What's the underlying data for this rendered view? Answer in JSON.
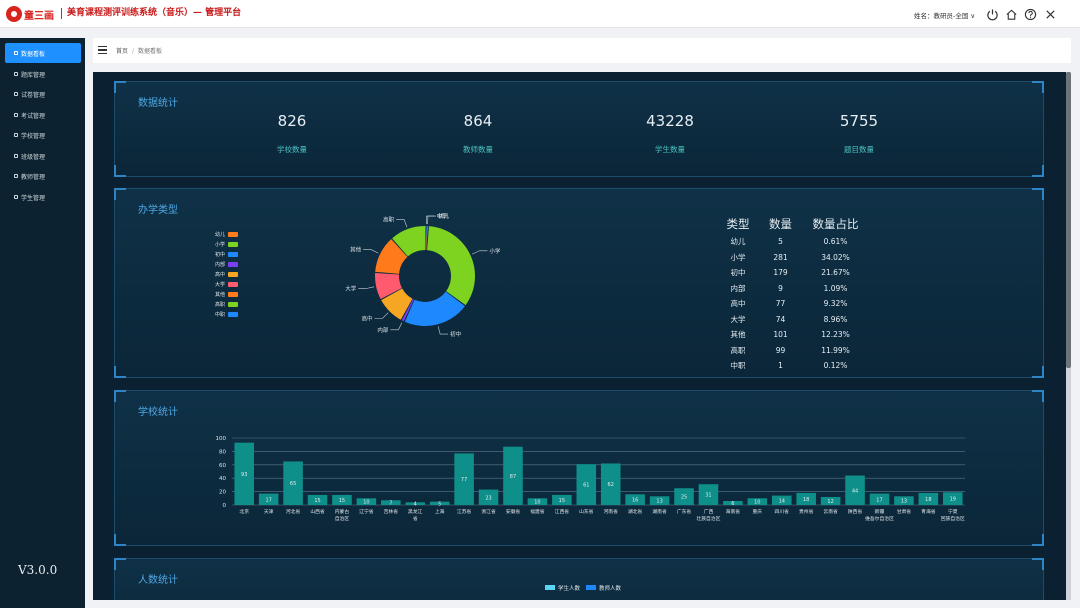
{
  "header": {
    "logo_text": "童三画",
    "title": "美育课程测评训练系统（音乐）— 管理平台",
    "user": "姓名：教研员-全国 ∨"
  },
  "sidebar": {
    "items": [
      {
        "label": "数据看板",
        "active": true
      },
      {
        "label": "题库管理"
      },
      {
        "label": "试卷管理"
      },
      {
        "label": "考试管理"
      },
      {
        "label": "学校管理"
      },
      {
        "label": "班级管理"
      },
      {
        "label": "教师管理"
      },
      {
        "label": "学生管理"
      }
    ],
    "version": "V3.0.0"
  },
  "breadcrumb": {
    "home": "首页",
    "sep": "/",
    "current": "数据看板"
  },
  "summary": {
    "title": "数据统计",
    "stats": [
      {
        "value": "826",
        "label": "学校数量"
      },
      {
        "value": "864",
        "label": "教师数量"
      },
      {
        "value": "43228",
        "label": "学生数量"
      },
      {
        "value": "5755",
        "label": "题目数量"
      }
    ]
  },
  "school_types": {
    "title": "办学类型",
    "legend": [
      {
        "name": "幼儿",
        "color": "#ff7a1a"
      },
      {
        "name": "小学",
        "color": "#7ed321"
      },
      {
        "name": "初中",
        "color": "#1e88ff"
      },
      {
        "name": "内部",
        "color": "#7b3ff2"
      },
      {
        "name": "高中",
        "color": "#f5a623"
      },
      {
        "name": "大学",
        "color": "#ff5a6e"
      },
      {
        "name": "其他",
        "color": "#ff7a1a"
      },
      {
        "name": "高职",
        "color": "#7ed321"
      },
      {
        "name": "中职",
        "color": "#1e88ff"
      }
    ],
    "table": {
      "headers": [
        "类型",
        "数量",
        "数量占比"
      ],
      "rows": [
        [
          "幼儿",
          "5",
          "0.61%"
        ],
        [
          "小学",
          "281",
          "34.02%"
        ],
        [
          "初中",
          "179",
          "21.67%"
        ],
        [
          "内部",
          "9",
          "1.09%"
        ],
        [
          "高中",
          "77",
          "9.32%"
        ],
        [
          "大学",
          "74",
          "8.96%"
        ],
        [
          "其他",
          "101",
          "12.23%"
        ],
        [
          "高职",
          "99",
          "11.99%"
        ],
        [
          "中职",
          "1",
          "0.12%"
        ]
      ]
    }
  },
  "school_stats": {
    "title": "学校统计"
  },
  "people_stats": {
    "title": "人数统计",
    "legend": [
      {
        "name": "学生人数",
        "color": "#5bd6f2"
      },
      {
        "name": "教师人数",
        "color": "#1e88ff"
      }
    ]
  },
  "chart_data": [
    {
      "type": "pie",
      "title": "",
      "categories": [
        "幼儿",
        "小学",
        "初中",
        "内部",
        "高中",
        "大学",
        "其他",
        "高职",
        "中职"
      ],
      "values": [
        5,
        281,
        179,
        9,
        77,
        74,
        101,
        99,
        1
      ],
      "colors": [
        "#ff7a1a",
        "#7ed321",
        "#1e88ff",
        "#7b3ff2",
        "#f5a623",
        "#ff5a6e",
        "#ff7a1a",
        "#7ed321",
        "#1e88ff"
      ],
      "donut": true
    },
    {
      "type": "bar",
      "title": "",
      "categories": [
        "北京",
        "天津",
        "河北省",
        "山西省",
        "内蒙古自治区",
        "辽宁省",
        "吉林省",
        "黑龙江省",
        "上海",
        "江苏省",
        "浙江省",
        "安徽省",
        "福建省",
        "江西省",
        "山东省",
        "河南省",
        "湖北省",
        "湖南省",
        "广东省",
        "广西壮族自治区",
        "海南省",
        "重庆",
        "四川省",
        "贵州省",
        "云南省",
        "陕西省",
        "新疆维吾尔自治区",
        "甘肃省",
        "青海省",
        "宁夏回族自治区"
      ],
      "category_lines": [
        [
          "北京"
        ],
        [
          "天津"
        ],
        [
          "河北省"
        ],
        [
          "山西省"
        ],
        [
          "内蒙古",
          "自治区"
        ],
        [
          "辽宁省"
        ],
        [
          "吉林省"
        ],
        [
          "黑龙江",
          "省"
        ],
        [
          "上海"
        ],
        [
          "江苏省"
        ],
        [
          "浙江省"
        ],
        [
          "安徽省"
        ],
        [
          "福建省"
        ],
        [
          "江西省"
        ],
        [
          "山东省"
        ],
        [
          "河南省"
        ],
        [
          "湖北省"
        ],
        [
          "湖南省"
        ],
        [
          "广东省"
        ],
        [
          "广西",
          "壮族自治区"
        ],
        [
          "海南省"
        ],
        [
          "重庆"
        ],
        [
          "四川省"
        ],
        [
          "贵州省"
        ],
        [
          "云南省"
        ],
        [
          "陕西省"
        ],
        [
          "新疆",
          "维吾尔自治区"
        ],
        [
          "甘肃省"
        ],
        [
          "青海省"
        ],
        [
          "宁夏",
          "回族自治区"
        ]
      ],
      "values": [
        93,
        17,
        65,
        15,
        15,
        10,
        7,
        4,
        5,
        77,
        23,
        87,
        10,
        15,
        61,
        62,
        16,
        13,
        25,
        31,
        6,
        10,
        14,
        18,
        12,
        44,
        17,
        13,
        18,
        19
      ],
      "ylim": [
        0,
        100
      ],
      "yticks": [
        0,
        20,
        40,
        60,
        80,
        100
      ],
      "grid": true,
      "color": "#0f8f8a"
    }
  ]
}
